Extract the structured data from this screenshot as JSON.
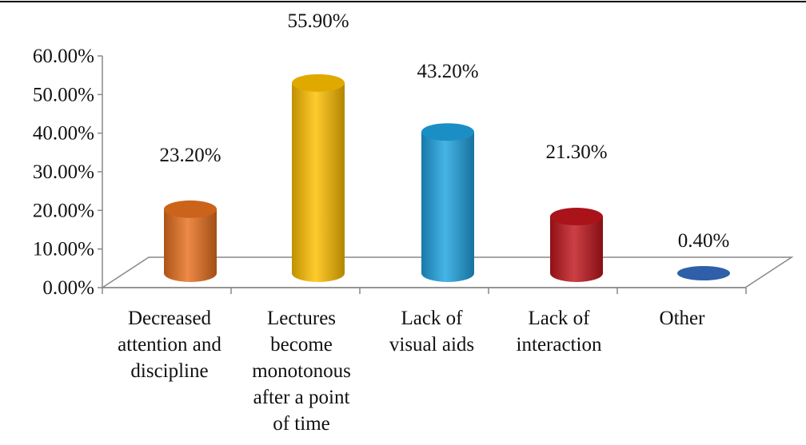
{
  "chart_data": {
    "type": "bar",
    "title": "",
    "xlabel": "",
    "ylabel": "",
    "ylim": [
      0,
      0.6
    ],
    "y_ticks": [
      "0.00%",
      "10.00%",
      "20.00%",
      "30.00%",
      "40.00%",
      "50.00%",
      "60.00%"
    ],
    "y_tick_values": [
      0,
      0.1,
      0.2,
      0.3,
      0.4,
      0.5,
      0.6
    ],
    "categories": [
      "Decreased attention and discipline",
      "Lectures become monotonous after a point of time",
      "Lack of visual aids",
      "Lack of interaction",
      "Other"
    ],
    "category_lines": [
      [
        "Decreased",
        "attention and",
        "discipline"
      ],
      [
        "Lectures",
        "become",
        "monotonous",
        "after a point",
        "of time"
      ],
      [
        "Lack of",
        "visual aids"
      ],
      [
        "Lack of",
        "interaction"
      ],
      [
        "Other"
      ]
    ],
    "values": [
      0.232,
      0.559,
      0.432,
      0.213,
      0.004
    ],
    "data_labels": [
      "23.20%",
      "55.90%",
      "43.20%",
      "21.30%",
      "0.40%"
    ],
    "colors": [
      "#E8701E",
      "#FFC000",
      "#1FA3E0",
      "#C0161C",
      "#2E5FA8"
    ],
    "style": "3d-cylinder",
    "grid": false,
    "legend": "none"
  }
}
